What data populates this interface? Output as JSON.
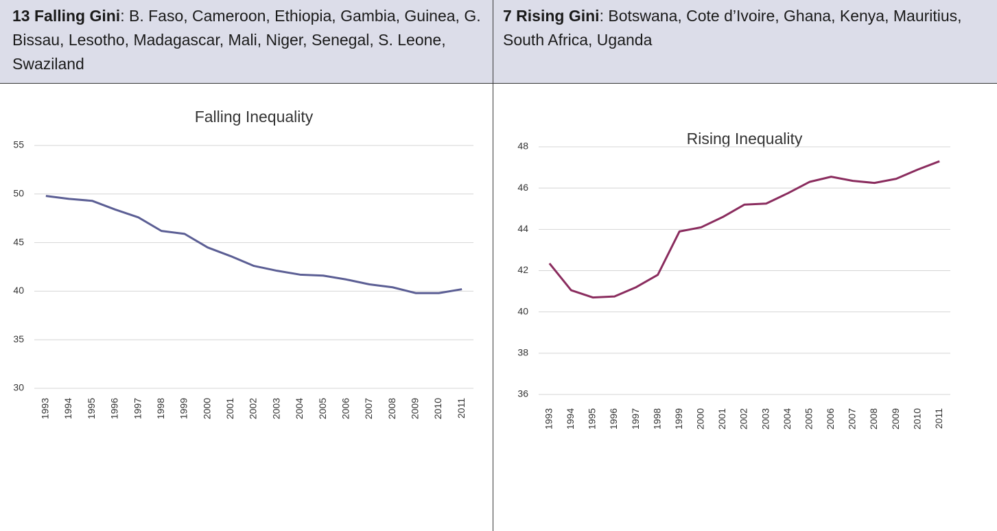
{
  "header": [
    {
      "bold": "13 Falling Gini",
      "text": ": B. Faso, Cameroon, Ethiopia, Gambia, Guinea, G. Bissau, Lesotho, Madagascar, Mali, Niger, Senegal,  S. Leone, Swaziland"
    },
    {
      "bold": "7 Rising Gini",
      "text": ": Botswana, Cote d’Ivoire, Ghana, Kenya, Mauritius, South Africa, Uganda"
    }
  ],
  "chart_data": [
    {
      "type": "line",
      "title": "Falling Inequality",
      "categories": [
        "1993",
        "1994",
        "1995",
        "1996",
        "1997",
        "1998",
        "1999",
        "2000",
        "2001",
        "2002",
        "2003",
        "2004",
        "2005",
        "2006",
        "2007",
        "2008",
        "2009",
        "2010",
        "2011"
      ],
      "series": [
        {
          "color": "#5b5e94",
          "values": [
            49.8,
            49.5,
            49.3,
            48.4,
            47.6,
            46.2,
            45.9,
            44.5,
            43.6,
            42.6,
            42.1,
            41.7,
            41.6,
            41.2,
            40.7,
            40.4,
            39.8,
            39.8,
            40.2
          ]
        }
      ],
      "ylim": [
        30,
        55
      ],
      "yticks": [
        30,
        35,
        40,
        45,
        50,
        55
      ],
      "grid": true
    },
    {
      "type": "line",
      "title": "Rising Inequality",
      "categories": [
        "1993",
        "1994",
        "1995",
        "1996",
        "1997",
        "1998",
        "1999",
        "2000",
        "2001",
        "2002",
        "2003",
        "2004",
        "2005",
        "2006",
        "2007",
        "2008",
        "2009",
        "2010",
        "2011"
      ],
      "series": [
        {
          "color": "#8a2c5e",
          "values": [
            42.35,
            41.05,
            40.7,
            40.75,
            41.2,
            41.8,
            43.9,
            44.1,
            44.6,
            45.2,
            45.25,
            45.75,
            46.3,
            46.55,
            46.35,
            46.25,
            46.45,
            46.9,
            47.3
          ]
        }
      ],
      "ylim": [
        36,
        48
      ],
      "yticks": [
        36,
        38,
        40,
        42,
        44,
        46,
        48
      ],
      "grid": true
    }
  ]
}
